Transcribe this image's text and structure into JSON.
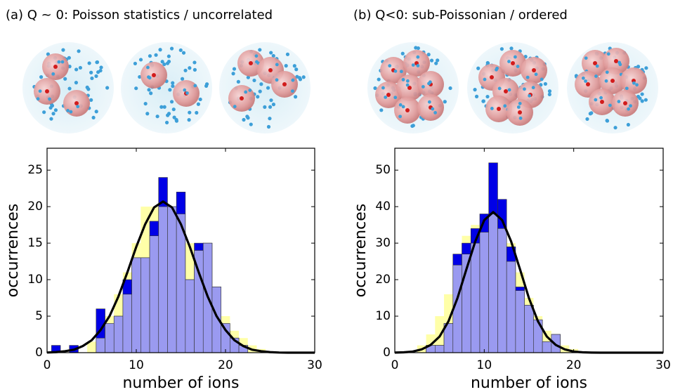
{
  "chart_data": [
    {
      "type": "histogram",
      "title": "(a) Q ~ 0: Poisson statistics / uncorrelated",
      "x_label": "number of ions",
      "y_label": "occurrences",
      "xlim": [
        0,
        30
      ],
      "ylim": [
        0,
        28
      ],
      "xticks": [
        0,
        10,
        20,
        30
      ],
      "yticks": [
        0,
        5,
        10,
        15,
        20,
        25
      ],
      "bins": [
        0.5,
        1.5,
        2.5,
        3.5,
        4.5,
        5.5,
        6.5,
        7.5,
        8.5,
        9.5,
        10.5,
        11.5,
        12.5,
        13.5,
        14.5,
        15.5,
        16.5,
        17.5,
        18.5,
        19.5,
        20.5,
        21.5,
        22.5,
        23.5,
        24.5
      ],
      "series": [
        {
          "style": "bar",
          "color": "#ffffa8",
          "values": [
            0,
            0,
            0,
            0,
            1.5,
            3,
            5,
            8,
            11,
            15,
            20,
            20,
            21,
            20,
            18,
            15,
            12,
            10,
            7,
            5,
            3,
            2,
            1,
            0.5
          ]
        },
        {
          "style": "bar",
          "color": "#0000e6",
          "values": [
            1,
            0,
            1,
            0,
            0,
            6,
            3,
            5,
            10,
            13,
            13,
            18,
            24,
            20,
            22,
            10,
            15,
            15,
            9,
            3,
            2,
            1,
            0,
            0
          ]
        },
        {
          "style": "bar",
          "color": "#9a9af0",
          "values": [
            0,
            0,
            0,
            0,
            0,
            2,
            4,
            5,
            8,
            13,
            13,
            16,
            20,
            20,
            19,
            10,
            14,
            15,
            9,
            4,
            2,
            1,
            0,
            0
          ]
        },
        {
          "style": "line",
          "color": "#000000",
          "x": [
            0,
            1,
            2,
            3,
            4,
            5,
            6,
            7,
            8,
            9,
            10,
            11,
            12,
            13,
            14,
            15,
            16,
            17,
            18,
            19,
            20,
            21,
            22,
            23,
            24,
            25,
            26,
            27,
            28,
            29,
            30
          ],
          "values": [
            0.02,
            0.07,
            0.2,
            0.4,
            0.9,
            1.7,
            3.1,
            5.0,
            7.7,
            11.0,
            14.5,
            17.6,
            19.9,
            20.7,
            19.9,
            17.6,
            14.5,
            11.0,
            7.7,
            5.0,
            3.1,
            1.7,
            0.9,
            0.4,
            0.2,
            0.07,
            0.02,
            0,
            0,
            0,
            0
          ]
        }
      ]
    },
    {
      "type": "histogram",
      "title": "(b) Q<0: sub-Poissonian / ordered",
      "x_label": "number of ions",
      "y_label": "occurrences",
      "xlim": [
        0,
        30
      ],
      "ylim": [
        0,
        56
      ],
      "xticks": [
        0,
        10,
        20,
        30
      ],
      "yticks": [
        0,
        10,
        20,
        30,
        40,
        50
      ],
      "bins": [
        0.5,
        1.5,
        2.5,
        3.5,
        4.5,
        5.5,
        6.5,
        7.5,
        8.5,
        9.5,
        10.5,
        11.5,
        12.5,
        13.5,
        14.5,
        15.5,
        16.5,
        17.5,
        18.5,
        19.5,
        20.5,
        21.5,
        22.5,
        23.5,
        24.5
      ],
      "series": [
        {
          "style": "bar",
          "color": "#ffffa8",
          "values": [
            0,
            0,
            2,
            5,
            10,
            16,
            25,
            32,
            35,
            38,
            38,
            36,
            30,
            22,
            15,
            10,
            6,
            4,
            2,
            1,
            0,
            0,
            0,
            0
          ]
        },
        {
          "style": "bar",
          "color": "#0000e6",
          "values": [
            0,
            0,
            0,
            2,
            2,
            8,
            27,
            30,
            34,
            38,
            52,
            42,
            29,
            18,
            13,
            9,
            3,
            5,
            0,
            0,
            0,
            0,
            0,
            0
          ]
        },
        {
          "style": "bar",
          "color": "#9a9af0",
          "values": [
            0,
            0,
            0,
            2,
            2,
            8,
            24,
            27,
            30,
            33,
            38,
            34,
            25,
            17,
            13,
            9,
            3,
            5,
            0,
            0,
            0,
            0,
            0,
            0
          ]
        },
        {
          "style": "line",
          "color": "#000000",
          "x": [
            0,
            1,
            2,
            3,
            4,
            5,
            6,
            7,
            8,
            9,
            10,
            11,
            12,
            13,
            14,
            15,
            16,
            17,
            18,
            19,
            20,
            21,
            22,
            23,
            24,
            25,
            26,
            27,
            28,
            29,
            30
          ],
          "values": [
            0.03,
            0.1,
            0.3,
            0.9,
            2.1,
            4.4,
            8.6,
            14.9,
            22.8,
            30.5,
            36.3,
            38.5,
            36.3,
            30.5,
            22.8,
            14.9,
            8.6,
            4.4,
            2.1,
            0.9,
            0.3,
            0.1,
            0.03,
            0,
            0,
            0,
            0,
            0,
            0,
            0,
            0
          ]
        }
      ]
    }
  ]
}
